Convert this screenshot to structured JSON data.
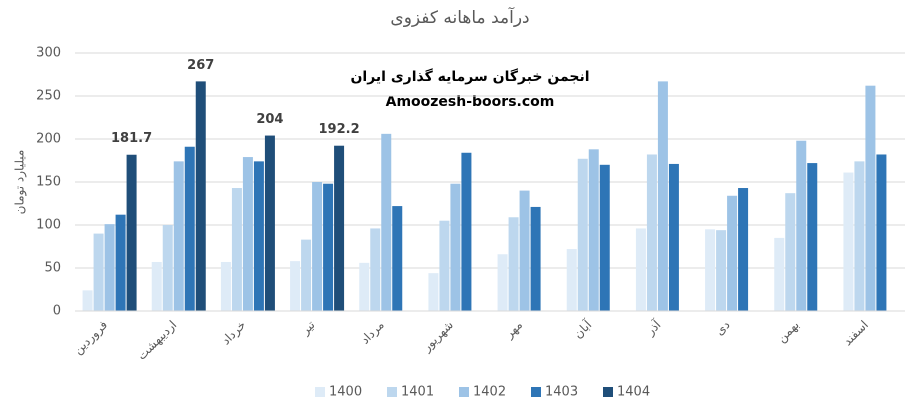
{
  "chart_data": {
    "type": "bar",
    "title": "درآمد ماهانه کفزوی",
    "y_label": "میلیارد تومان",
    "annotations": [
      "انجمن خبرگان سرمایه گذاری ایران",
      "Amoozesh-boors.com"
    ],
    "categories": [
      "فروردین",
      "اردیبهشت",
      "خرداد",
      "تیر",
      "مرداد",
      "شهریور",
      "مهر",
      "آبان",
      "آذر",
      "دی",
      "بهمن",
      "اسفند"
    ],
    "series": [
      {
        "name": "1400",
        "color": "#deebf7",
        "values": [
          24,
          57,
          57,
          58,
          56,
          44,
          66,
          72,
          96,
          95,
          85,
          161
        ]
      },
      {
        "name": "1401",
        "color": "#bdd7ee",
        "values": [
          90,
          100,
          143,
          83,
          96,
          105,
          109,
          177,
          182,
          94,
          137,
          174
        ]
      },
      {
        "name": "1402",
        "color": "#9dc3e6",
        "values": [
          101,
          174,
          179,
          150,
          206,
          148,
          140,
          188,
          267,
          134,
          198,
          262
        ]
      },
      {
        "name": "1403",
        "color": "#2e75b6",
        "values": [
          112,
          191,
          174,
          148,
          122,
          184,
          121,
          170,
          171,
          143,
          172,
          182
        ]
      },
      {
        "name": "1404",
        "color": "#1f4e79",
        "values": [
          181.7,
          267,
          204,
          192.2,
          null,
          null,
          null,
          null,
          null,
          null,
          null,
          null
        ],
        "show_labels": true
      }
    ],
    "ylim": [
      0,
      300
    ],
    "yticks": [
      0,
      50,
      100,
      150,
      200,
      250,
      300
    ],
    "grid": true,
    "legend": "bottom"
  }
}
